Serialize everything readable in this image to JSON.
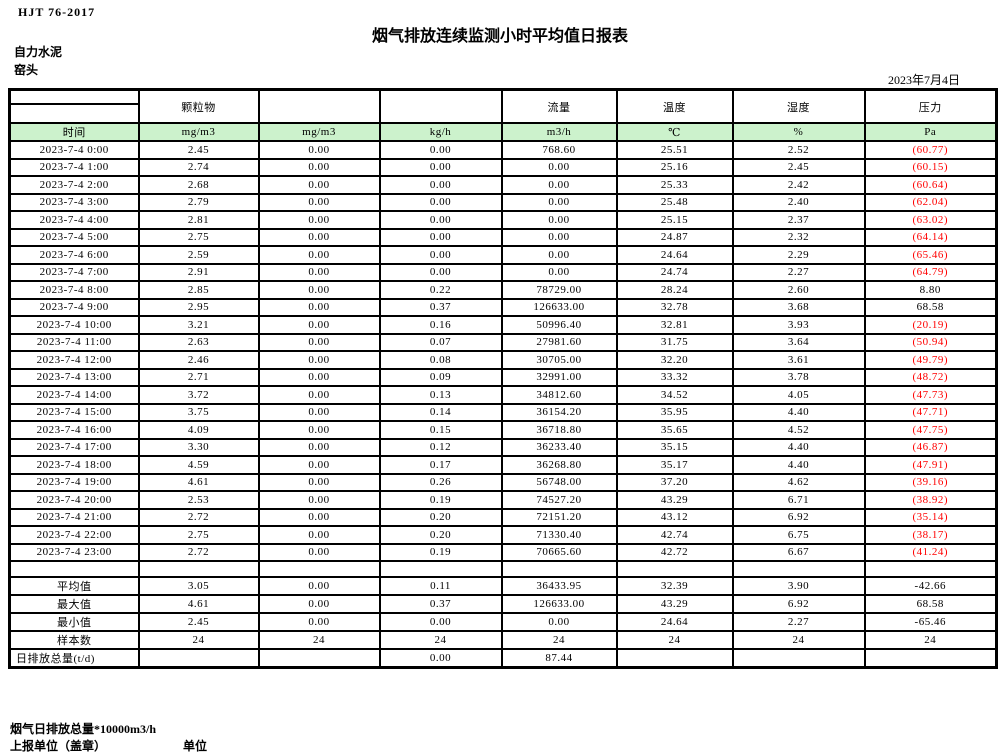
{
  "page": {
    "doc_code": "HJT 76-2017",
    "title": "烟气排放连续监测小时平均值日报表",
    "company": "自力水泥",
    "site": "窑头",
    "date": "2023年7月4日",
    "footnote": "烟气日排放总量*10000m3/h",
    "report_unit_label": "上报单位（盖章）",
    "unit_label": "单位"
  },
  "table": {
    "colors": {
      "header_fill": "#ccf2cc",
      "negative_value": "#ff0000",
      "grid": "#000000"
    },
    "group_headers": [
      "",
      "颗粒物",
      "",
      "",
      "流量",
      "温度",
      "湿度",
      "压力"
    ],
    "unit_row": [
      "时间",
      "mg/m3",
      "mg/m3",
      "kg/h",
      "m3/h",
      "℃",
      "%",
      "Pa"
    ],
    "rows": [
      [
        "2023-7-4 0:00",
        "2.45",
        "0.00",
        "0.00",
        "768.60",
        "25.51",
        "2.52",
        "(60.77)"
      ],
      [
        "2023-7-4 1:00",
        "2.74",
        "0.00",
        "0.00",
        "0.00",
        "25.16",
        "2.45",
        "(60.15)"
      ],
      [
        "2023-7-4 2:00",
        "2.68",
        "0.00",
        "0.00",
        "0.00",
        "25.33",
        "2.42",
        "(60.64)"
      ],
      [
        "2023-7-4 3:00",
        "2.79",
        "0.00",
        "0.00",
        "0.00",
        "25.48",
        "2.40",
        "(62.04)"
      ],
      [
        "2023-7-4 4:00",
        "2.81",
        "0.00",
        "0.00",
        "0.00",
        "25.15",
        "2.37",
        "(63.02)"
      ],
      [
        "2023-7-4 5:00",
        "2.75",
        "0.00",
        "0.00",
        "0.00",
        "24.87",
        "2.32",
        "(64.14)"
      ],
      [
        "2023-7-4 6:00",
        "2.59",
        "0.00",
        "0.00",
        "0.00",
        "24.64",
        "2.29",
        "(65.46)"
      ],
      [
        "2023-7-4 7:00",
        "2.91",
        "0.00",
        "0.00",
        "0.00",
        "24.74",
        "2.27",
        "(64.79)"
      ],
      [
        "2023-7-4 8:00",
        "2.85",
        "0.00",
        "0.22",
        "78729.00",
        "28.24",
        "2.60",
        "8.80"
      ],
      [
        "2023-7-4 9:00",
        "2.95",
        "0.00",
        "0.37",
        "126633.00",
        "32.78",
        "3.68",
        "68.58"
      ],
      [
        "2023-7-4 10:00",
        "3.21",
        "0.00",
        "0.16",
        "50996.40",
        "32.81",
        "3.93",
        "(20.19)"
      ],
      [
        "2023-7-4 11:00",
        "2.63",
        "0.00",
        "0.07",
        "27981.60",
        "31.75",
        "3.64",
        "(50.94)"
      ],
      [
        "2023-7-4 12:00",
        "2.46",
        "0.00",
        "0.08",
        "30705.00",
        "32.20",
        "3.61",
        "(49.79)"
      ],
      [
        "2023-7-4 13:00",
        "2.71",
        "0.00",
        "0.09",
        "32991.00",
        "33.32",
        "3.78",
        "(48.72)"
      ],
      [
        "2023-7-4 14:00",
        "3.72",
        "0.00",
        "0.13",
        "34812.60",
        "34.52",
        "4.05",
        "(47.73)"
      ],
      [
        "2023-7-4 15:00",
        "3.75",
        "0.00",
        "0.14",
        "36154.20",
        "35.95",
        "4.40",
        "(47.71)"
      ],
      [
        "2023-7-4 16:00",
        "4.09",
        "0.00",
        "0.15",
        "36718.80",
        "35.65",
        "4.52",
        "(47.75)"
      ],
      [
        "2023-7-4 17:00",
        "3.30",
        "0.00",
        "0.12",
        "36233.40",
        "35.15",
        "4.40",
        "(46.87)"
      ],
      [
        "2023-7-4 18:00",
        "4.59",
        "0.00",
        "0.17",
        "36268.80",
        "35.17",
        "4.40",
        "(47.91)"
      ],
      [
        "2023-7-4 19:00",
        "4.61",
        "0.00",
        "0.26",
        "56748.00",
        "37.20",
        "4.62",
        "(39.16)"
      ],
      [
        "2023-7-4 20:00",
        "2.53",
        "0.00",
        "0.19",
        "74527.20",
        "43.29",
        "6.71",
        "(38.92)"
      ],
      [
        "2023-7-4 21:00",
        "2.72",
        "0.00",
        "0.20",
        "72151.20",
        "43.12",
        "6.92",
        "(35.14)"
      ],
      [
        "2023-7-4 22:00",
        "2.75",
        "0.00",
        "0.20",
        "71330.40",
        "42.74",
        "6.75",
        "(38.17)"
      ],
      [
        "2023-7-4 23:00",
        "2.72",
        "0.00",
        "0.19",
        "70665.60",
        "42.72",
        "6.67",
        "(41.24)"
      ]
    ],
    "summary_rows": [
      [
        "",
        "",
        "",
        "",
        "",
        "",
        "",
        ""
      ],
      [
        "平均值",
        "3.05",
        "0.00",
        "0.11",
        "36433.95",
        "32.39",
        "3.90",
        "-42.66"
      ],
      [
        "最大值",
        "4.61",
        "0.00",
        "0.37",
        "126633.00",
        "43.29",
        "6.92",
        "68.58"
      ],
      [
        "最小值",
        "2.45",
        "0.00",
        "0.00",
        "0.00",
        "24.64",
        "2.27",
        "-65.46"
      ],
      [
        "样本数",
        "24",
        "24",
        "24",
        "24",
        "24",
        "24",
        "24"
      ],
      [
        "日排放总量(t/d)",
        "",
        "",
        "0.00",
        "87.44",
        "",
        "",
        ""
      ]
    ]
  }
}
